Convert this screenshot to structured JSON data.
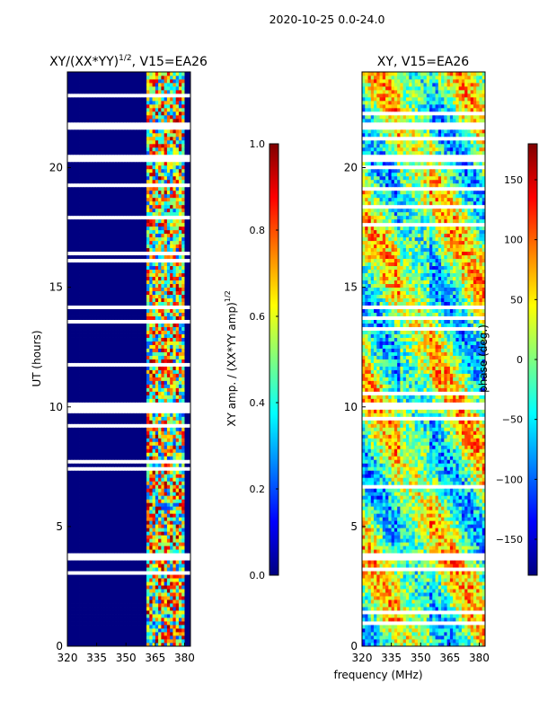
{
  "figure": {
    "suptitle": "2020-10-25 0.0-24.0",
    "shared_xlabel": "frequency (MHz)"
  },
  "chart_data": [
    {
      "type": "heatmap",
      "title": "XY/(XX*YY)",
      "title_sup": "1/2",
      "title_suffix": ", V15=EA26",
      "xlabel": "",
      "ylabel": "UT (hours)",
      "xlim": [
        320,
        383
      ],
      "ylim": [
        0,
        24
      ],
      "x_ticks": [
        320,
        335,
        350,
        365,
        380
      ],
      "y_ticks": [
        0,
        5,
        10,
        15,
        20
      ],
      "colormap": "jet",
      "vmin": 0.0,
      "vmax": 1.0,
      "colorbar_label": "XY amp. / (XX*YY amp)",
      "colorbar_label_sup": "1/2",
      "colorbar_ticks": [
        "0.0",
        "0.2",
        "0.4",
        "0.6",
        "0.8",
        "1.0"
      ],
      "flagged_utc_bands_hours": [
        [
          3.55,
          3.85
        ],
        [
          9.85,
          10.2
        ],
        [
          14.05,
          14.3
        ],
        [
          20.3,
          20.5
        ],
        [
          21.6,
          21.85
        ]
      ],
      "active_frequency_range_mhz": [
        361,
        380
      ],
      "dominant_value_outside_active_range": 0.0,
      "typical_value_inside_active_range": 0.45
    },
    {
      "type": "heatmap",
      "title": "XY, V15=EA26",
      "xlabel": "",
      "ylabel": "",
      "xlim": [
        320,
        383
      ],
      "ylim": [
        0,
        24
      ],
      "x_ticks": [
        320,
        335,
        350,
        365,
        380
      ],
      "y_ticks": [
        0,
        5,
        10,
        15,
        20
      ],
      "colormap": "jet",
      "vmin": -180,
      "vmax": 180,
      "colorbar_label": "phase (deg.)",
      "colorbar_ticks": [
        "-150",
        "-100",
        "-50",
        "0",
        "50",
        "100",
        "150"
      ],
      "flagged_utc_bands_hours": [
        [
          3.55,
          3.85
        ],
        [
          9.85,
          10.2
        ],
        [
          14.05,
          14.3
        ],
        [
          20.3,
          20.5
        ],
        [
          21.6,
          21.85
        ]
      ],
      "phase_range_deg": [
        -180,
        180
      ]
    }
  ],
  "colors": {
    "background": "#ffffff",
    "axes": "#000000"
  }
}
